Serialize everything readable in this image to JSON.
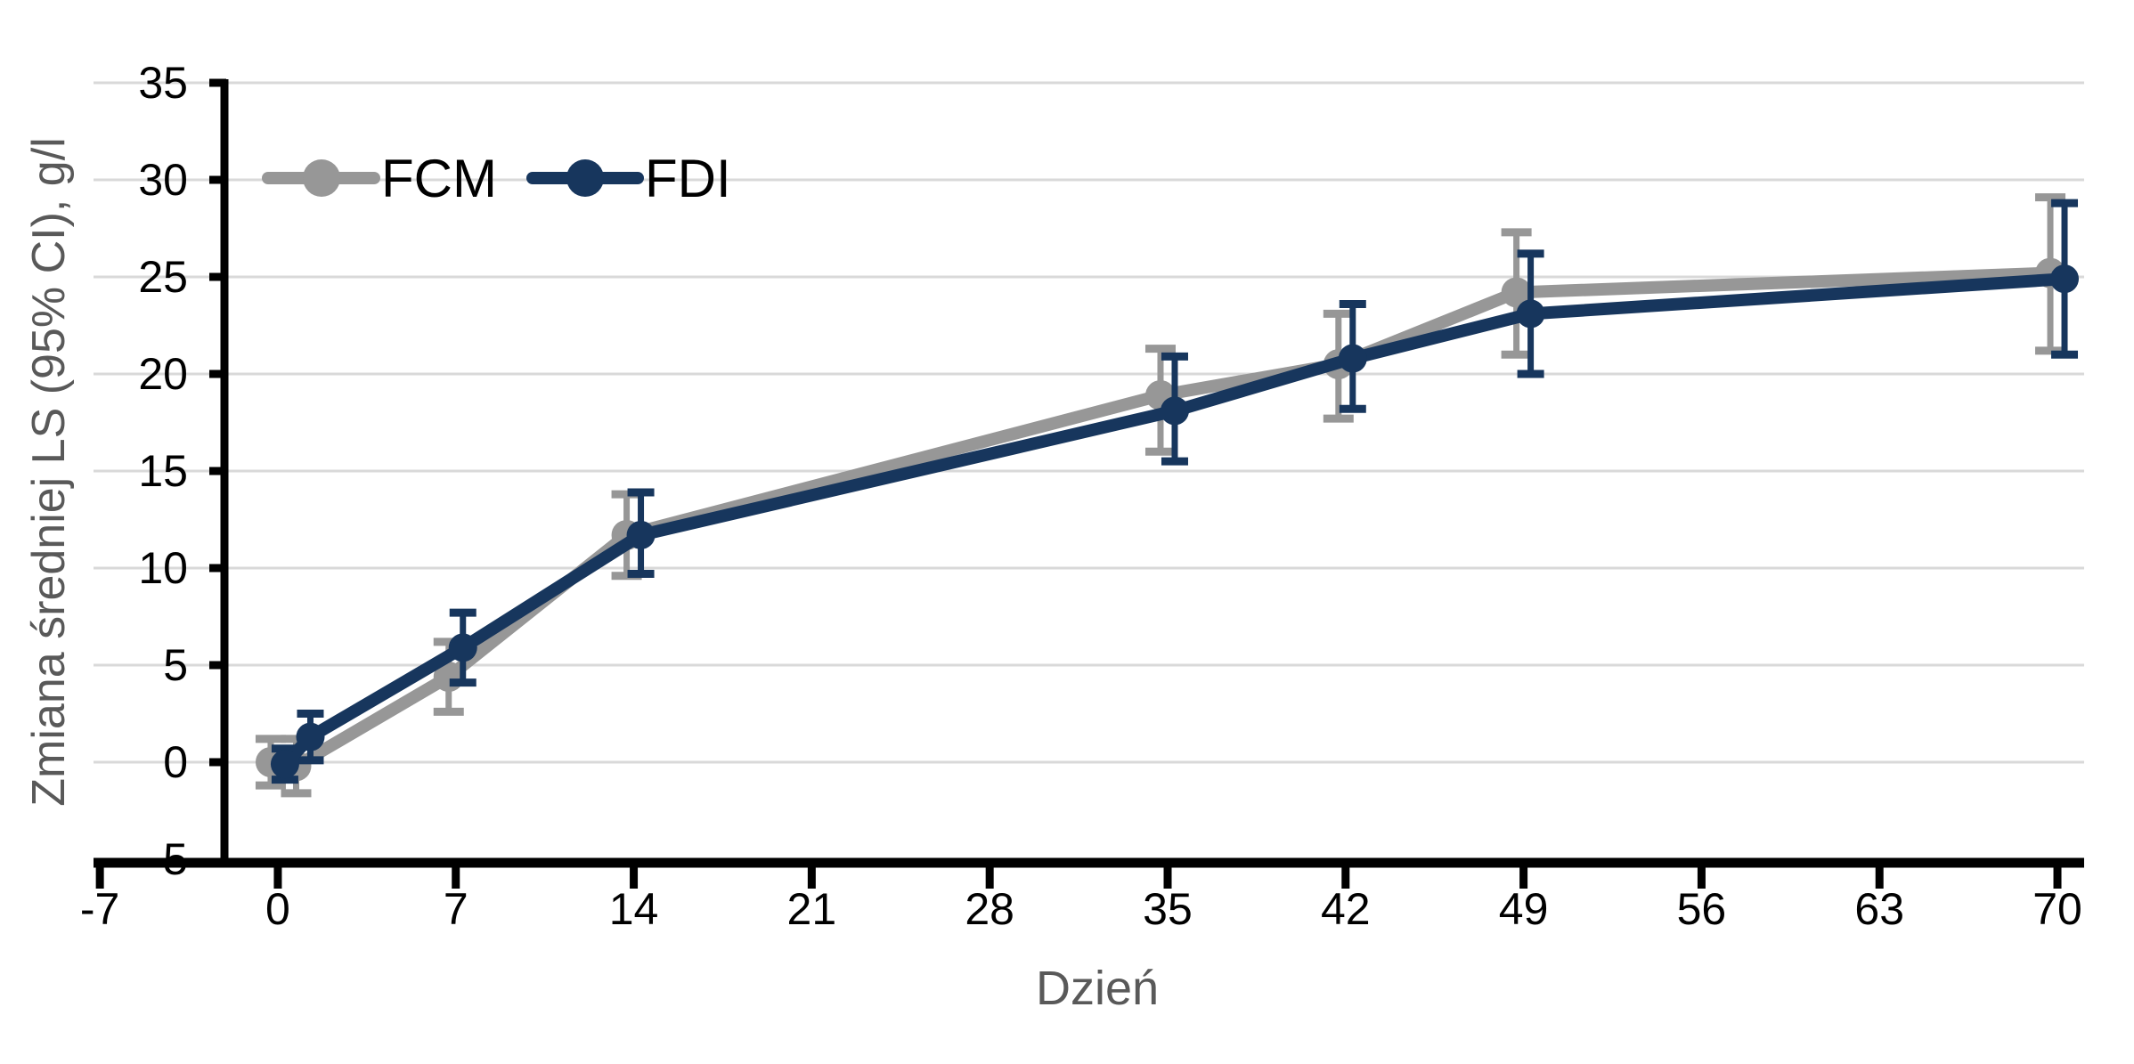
{
  "chart_data": {
    "type": "line",
    "title": "",
    "xlabel": "Dzień",
    "ylabel": "Zmiana średniej LS (95% CI), g/l",
    "x_ticks": [
      -7,
      0,
      7,
      14,
      21,
      28,
      35,
      42,
      49,
      56,
      63,
      70
    ],
    "y_ticks": [
      35,
      30,
      25,
      20,
      15,
      10,
      5,
      0,
      -5
    ],
    "xlim": [
      -7.25,
      71.05
    ],
    "ylim": [
      -5,
      35
    ],
    "grid": "horizontal-only",
    "gridline_values": [
      0,
      5,
      10,
      15,
      20,
      25,
      30,
      35
    ],
    "legend_position": "inside-top-left",
    "error_bars": "95% CI",
    "series": [
      {
        "name": "FCM",
        "color": "#979797",
        "marker_x_offset_days": -0.28,
        "points": [
          {
            "x": 0,
            "y": 0.0,
            "lo": -1.2,
            "hi": 1.2
          },
          {
            "x": 1,
            "y": -0.2,
            "lo": -1.6,
            "hi": 1.2
          },
          {
            "x": 7,
            "y": 4.4,
            "lo": 2.6,
            "hi": 6.2
          },
          {
            "x": 14,
            "y": 11.7,
            "lo": 9.6,
            "hi": 13.8
          },
          {
            "x": 35,
            "y": 18.9,
            "lo": 16.0,
            "hi": 21.3
          },
          {
            "x": 42,
            "y": 20.5,
            "lo": 17.7,
            "hi": 23.1
          },
          {
            "x": 49,
            "y": 24.2,
            "lo": 21.0,
            "hi": 27.3
          },
          {
            "x": 70,
            "y": 25.2,
            "lo": 21.2,
            "hi": 29.1
          }
        ]
      },
      {
        "name": "FDI",
        "color": "#17365D",
        "marker_x_offset_days": 0.28,
        "points": [
          {
            "x": 0,
            "y": -0.1,
            "lo": -0.9,
            "hi": 0.7
          },
          {
            "x": 1,
            "y": 1.3,
            "lo": 0.1,
            "hi": 2.5
          },
          {
            "x": 7,
            "y": 5.9,
            "lo": 4.1,
            "hi": 7.7
          },
          {
            "x": 14,
            "y": 11.7,
            "lo": 9.7,
            "hi": 13.9
          },
          {
            "x": 35,
            "y": 18.1,
            "lo": 15.5,
            "hi": 20.9
          },
          {
            "x": 42,
            "y": 20.8,
            "lo": 18.2,
            "hi": 23.6
          },
          {
            "x": 49,
            "y": 23.1,
            "lo": 20.0,
            "hi": 26.2
          },
          {
            "x": 70,
            "y": 24.9,
            "lo": 21.0,
            "hi": 28.8
          }
        ]
      }
    ]
  },
  "styles": {
    "background": "#ffffff",
    "gridline_color": "#d9d9d9",
    "axis_color": "#000000",
    "tick_label_color": "#000000",
    "axis_title_color": "#595959",
    "legend_text_color": "#000000",
    "fcm_color": "#979797",
    "fdi_color": "#17365D"
  }
}
